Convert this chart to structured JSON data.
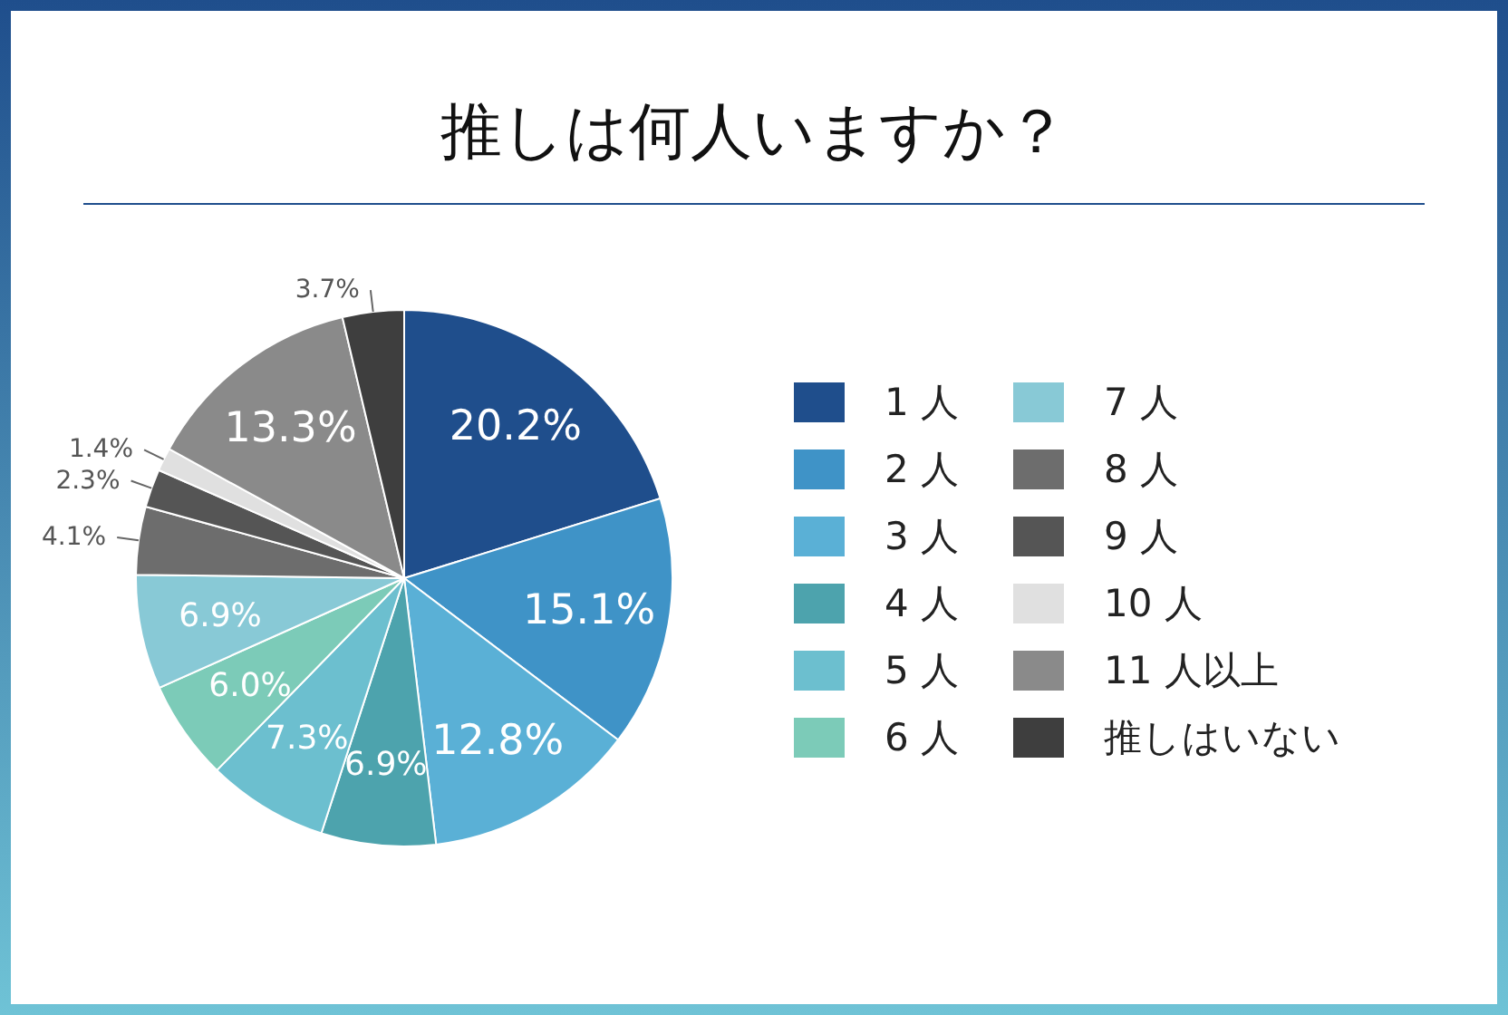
{
  "chart_data": {
    "type": "pie",
    "title": "推しは何人いますか？",
    "categories": [
      "1 人",
      "2 人",
      "3 人",
      "4 人",
      "5 人",
      "6 人",
      "7 人",
      "8 人",
      "9 人",
      "10 人",
      "11 人以上",
      "推しはいない"
    ],
    "values": [
      20.2,
      15.1,
      12.8,
      6.9,
      7.3,
      6.0,
      6.9,
      4.1,
      2.3,
      1.4,
      13.3,
      3.7
    ],
    "colors": [
      "#1f4e8c",
      "#3f93c7",
      "#5ab0d6",
      "#4da3ad",
      "#6cbfcf",
      "#7ccbb8",
      "#88c9d6",
      "#6d6d6d",
      "#555555",
      "#e0e0e0",
      "#8a8a8a",
      "#3e3e3e"
    ],
    "value_labels": [
      "20.2%",
      "15.1%",
      "12.8%",
      "6.9%",
      "7.3%",
      "6.0%",
      "6.9%",
      "4.1%",
      "2.3%",
      "1.4%",
      "13.3%",
      "3.7%"
    ],
    "legend": "right"
  }
}
